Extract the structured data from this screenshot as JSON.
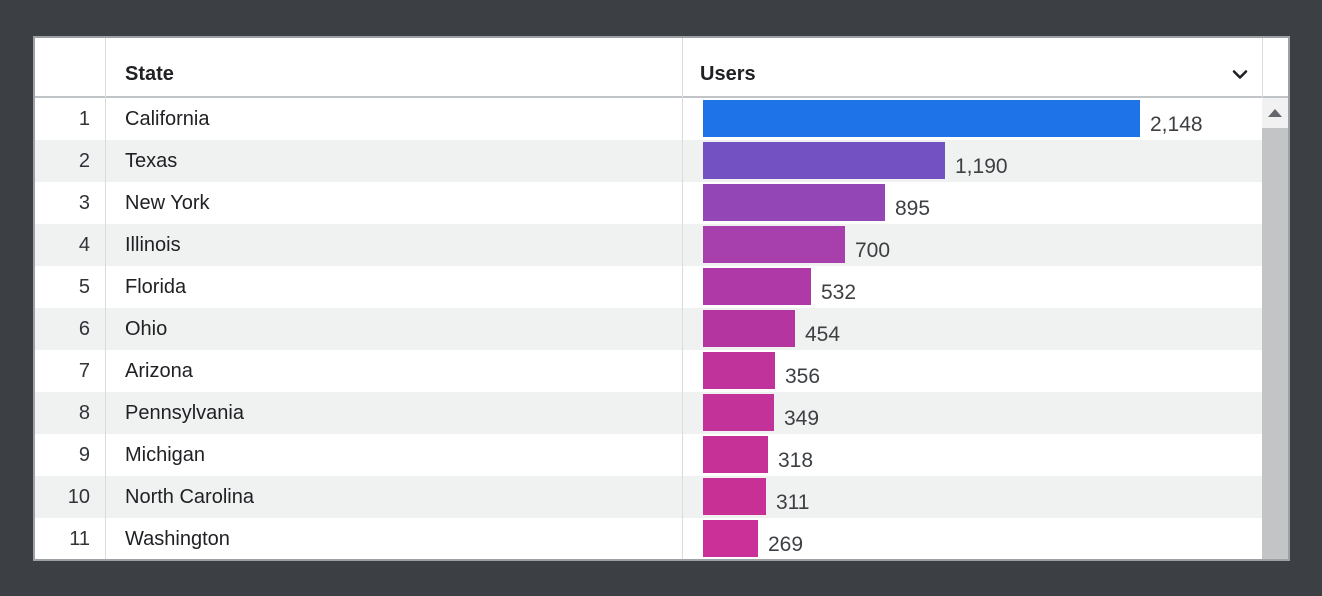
{
  "background_color": "#3c4045",
  "table": {
    "columns": {
      "state": "State",
      "users": "Users"
    },
    "icons": {
      "sort": "chevron-down",
      "scroll_up": "triangle-up"
    },
    "rows": [
      {
        "rank": "1",
        "state": "California",
        "users": 2148,
        "users_label": "2,148",
        "color": "#1e73e8"
      },
      {
        "rank": "2",
        "state": "Texas",
        "users": 1190,
        "users_label": "1,190",
        "color": "#7351c2"
      },
      {
        "rank": "3",
        "state": "New York",
        "users": 895,
        "users_label": "895",
        "color": "#9346b6"
      },
      {
        "rank": "4",
        "state": "Illinois",
        "users": 700,
        "users_label": "700",
        "color": "#a73fad"
      },
      {
        "rank": "5",
        "state": "Florida",
        "users": 532,
        "users_label": "532",
        "color": "#ae39a7"
      },
      {
        "rank": "6",
        "state": "Ohio",
        "users": 454,
        "users_label": "454",
        "color": "#b434a0"
      },
      {
        "rank": "7",
        "state": "Arizona",
        "users": 356,
        "users_label": "356",
        "color": "#bf339a"
      },
      {
        "rank": "8",
        "state": "Pennsylvania",
        "users": 349,
        "users_label": "349",
        "color": "#c23298"
      },
      {
        "rank": "9",
        "state": "Michigan",
        "users": 318,
        "users_label": "318",
        "color": "#c53197"
      },
      {
        "rank": "10",
        "state": "North Carolina",
        "users": 311,
        "users_label": "311",
        "color": "#c83096"
      },
      {
        "rank": "11",
        "state": "Washington",
        "users": 269,
        "users_label": "269",
        "color": "#ca3097"
      }
    ]
  },
  "chart_data": {
    "type": "bar",
    "orientation": "horizontal",
    "categories": [
      "California",
      "Texas",
      "New York",
      "Illinois",
      "Florida",
      "Ohio",
      "Arizona",
      "Pennsylvania",
      "Michigan",
      "North Carolina",
      "Washington"
    ],
    "values": [
      2148,
      1190,
      895,
      700,
      532,
      454,
      356,
      349,
      318,
      311,
      269
    ],
    "value_labels": [
      "2,148",
      "1,190",
      "895",
      "700",
      "532",
      "454",
      "356",
      "349",
      "318",
      "311",
      "269"
    ],
    "title": "",
    "xlabel": "Users",
    "ylabel": "State",
    "xlim": [
      0,
      2148
    ],
    "grid": false,
    "legend": false,
    "bar_colors": [
      "#1e73e8",
      "#7351c2",
      "#9346b6",
      "#a73fad",
      "#ae39a7",
      "#b434a0",
      "#bf339a",
      "#c23298",
      "#c53197",
      "#c83096",
      "#ca3097"
    ]
  }
}
